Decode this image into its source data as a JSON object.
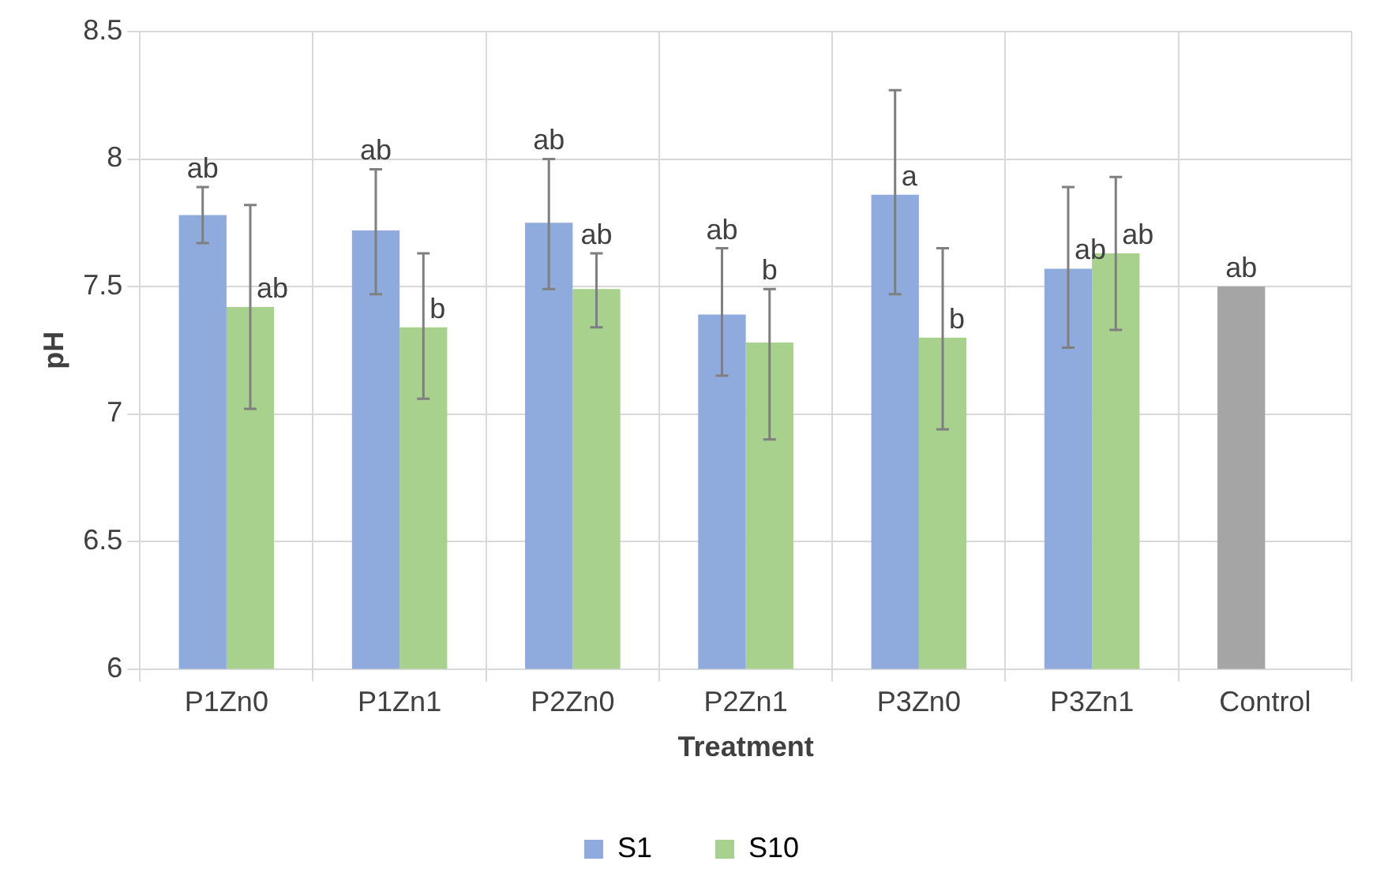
{
  "chart_data": {
    "type": "bar",
    "xlabel": "Treatment",
    "ylabel": "pH",
    "categories": [
      "P1Zn0",
      "P1Zn1",
      "P2Zn0",
      "P2Zn1",
      "P3Zn0",
      "P3Zn1",
      "Control"
    ],
    "series": [
      {
        "name": "S1",
        "color": "#8faadc",
        "colors": [
          "#8faadc",
          "#8faadc",
          "#8faadc",
          "#8faadc",
          "#8faadc",
          "#8faadc",
          "#a5a5a5"
        ],
        "values": [
          7.78,
          7.72,
          7.75,
          7.39,
          7.86,
          7.57,
          7.5
        ],
        "errors": [
          [
            7.67,
            7.89
          ],
          [
            7.47,
            7.96
          ],
          [
            7.49,
            8.0
          ],
          [
            7.15,
            7.65
          ],
          [
            7.47,
            8.27
          ],
          [
            7.26,
            7.89
          ],
          null
        ],
        "value_labels": [
          "ab",
          "ab",
          "ab",
          "ab",
          "a",
          "ab",
          "ab"
        ]
      },
      {
        "name": "S10",
        "color": "#a9d18e",
        "values": [
          7.42,
          7.34,
          7.49,
          7.28,
          7.3,
          7.63,
          null
        ],
        "errors": [
          [
            7.02,
            7.82
          ],
          [
            7.06,
            7.63
          ],
          [
            7.34,
            7.63
          ],
          [
            6.9,
            7.49
          ],
          [
            6.94,
            7.65
          ],
          [
            7.33,
            7.93
          ],
          null
        ],
        "value_labels": [
          "ab",
          "b",
          "ab",
          "b",
          "b",
          "ab",
          null
        ]
      }
    ],
    "ylim": [
      6,
      8.5
    ],
    "yticks": [
      6,
      6.5,
      7,
      7.5,
      8,
      8.5
    ],
    "grid": true,
    "legend": "bottom"
  }
}
